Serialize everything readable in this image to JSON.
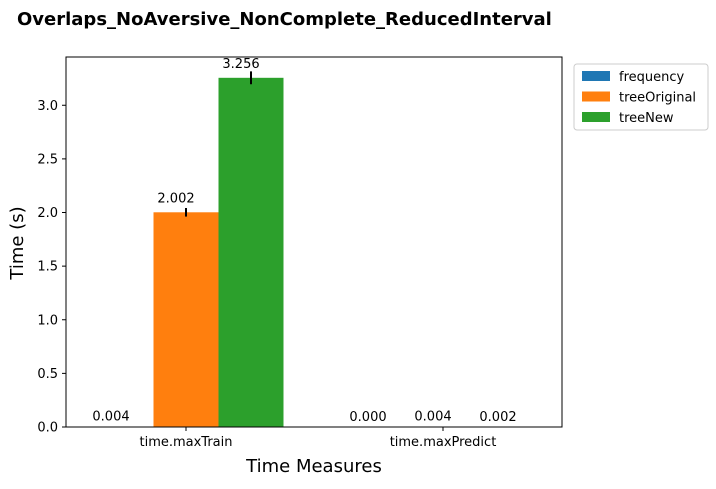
{
  "chart_data": {
    "type": "bar",
    "title": "Overlaps_NoAversive_NonComplete_ReducedInterval",
    "xlabel": "Time Measures",
    "ylabel": "Time (s)",
    "categories": [
      "time.maxTrain",
      "time.maxPredict"
    ],
    "ylim": [
      0,
      3.45
    ],
    "yticks": [
      "0.0",
      "0.5",
      "1.0",
      "1.5",
      "2.0",
      "2.5",
      "3.0"
    ],
    "grid": false,
    "legend_position": "outside-top-right",
    "series": [
      {
        "name": "frequency",
        "color": "#1f77b4",
        "values": [
          0.004,
          0.0
        ],
        "errors": [
          0.0,
          0.0
        ],
        "labels": [
          "0.004",
          "0.000"
        ]
      },
      {
        "name": "treeOriginal",
        "color": "#ff7f0e",
        "values": [
          2.002,
          0.004
        ],
        "errors": [
          0.04,
          0.0
        ],
        "labels": [
          "2.002",
          "0.004"
        ]
      },
      {
        "name": "treeNew",
        "color": "#2ca02c",
        "values": [
          3.256,
          0.002
        ],
        "errors": [
          0.06,
          0.0
        ],
        "labels": [
          "3.256",
          "0.002"
        ]
      }
    ]
  }
}
